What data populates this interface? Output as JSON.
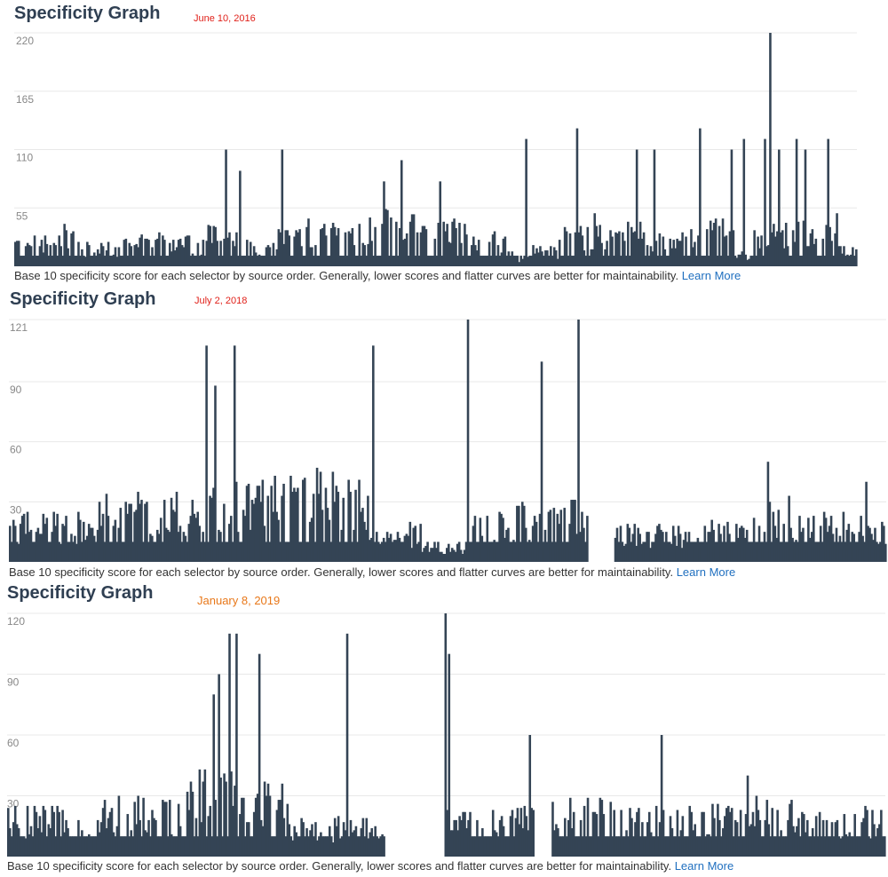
{
  "colors": {
    "bars": "#344455",
    "grid": "#e8e8e8",
    "tick": "#888888",
    "link": "#1f6fbf"
  },
  "caption_text": "Base 10 specificity score for each selector by source order. Generally, lower scores and flatter curves are better for maintainability.",
  "learn_more": "Learn More",
  "panels": [
    {
      "title": "Specificity Graph",
      "date": "June 10, 2016",
      "date_color": "#e0211a",
      "chart_data": {
        "type": "area",
        "ylim": [
          0,
          220
        ],
        "yticks": [
          "220",
          "165",
          "110",
          "55"
        ],
        "n": 480,
        "baseline": 10,
        "bands": [
          [
            0,
            18,
            30
          ],
          [
            18,
            40,
            40
          ],
          [
            40,
            60,
            25
          ],
          [
            60,
            85,
            35
          ],
          [
            85,
            110,
            30
          ],
          [
            110,
            130,
            40
          ],
          [
            130,
            150,
            25
          ],
          [
            150,
            170,
            45
          ],
          [
            170,
            190,
            50
          ],
          [
            190,
            215,
            55
          ],
          [
            215,
            235,
            50
          ],
          [
            235,
            260,
            45
          ],
          [
            260,
            285,
            35
          ],
          [
            285,
            295,
            10
          ],
          [
            295,
            310,
            20
          ],
          [
            310,
            335,
            40
          ],
          [
            335,
            360,
            45
          ],
          [
            360,
            380,
            35
          ],
          [
            380,
            410,
            45
          ],
          [
            410,
            420,
            15
          ],
          [
            420,
            445,
            45
          ],
          [
            445,
            470,
            45
          ],
          [
            470,
            480,
            20
          ]
        ],
        "peaks": [
          [
            120,
            110
          ],
          [
            128,
            90
          ],
          [
            152,
            110
          ],
          [
            210,
            80
          ],
          [
            220,
            100
          ],
          [
            242,
            80
          ],
          [
            291,
            120
          ],
          [
            320,
            130
          ],
          [
            330,
            50
          ],
          [
            354,
            110
          ],
          [
            364,
            110
          ],
          [
            390,
            130
          ],
          [
            408,
            110
          ],
          [
            415,
            120
          ],
          [
            427,
            120
          ],
          [
            430,
            220
          ],
          [
            435,
            110
          ],
          [
            445,
            120
          ],
          [
            450,
            110
          ],
          [
            463,
            120
          ],
          [
            468,
            50
          ]
        ]
      }
    },
    {
      "title": "Specificity Graph",
      "date": "July 2, 2018",
      "date_color": "#e0211a",
      "chart_data": {
        "type": "area",
        "ylim": [
          0,
          121
        ],
        "yticks": [
          "121",
          "90",
          "60",
          "30"
        ],
        "n": 500,
        "baseline": 10,
        "bands": [
          [
            0,
            50,
            25
          ],
          [
            50,
            110,
            35
          ],
          [
            110,
            140,
            40
          ],
          [
            140,
            160,
            45
          ],
          [
            160,
            185,
            50
          ],
          [
            185,
            205,
            45
          ],
          [
            205,
            220,
            15
          ],
          [
            220,
            235,
            20
          ],
          [
            235,
            260,
            10
          ],
          [
            260,
            280,
            25
          ],
          [
            280,
            300,
            30
          ],
          [
            300,
            330,
            35
          ],
          [
            330,
            345,
            0
          ],
          [
            345,
            370,
            20
          ],
          [
            370,
            400,
            20
          ],
          [
            400,
            420,
            25
          ],
          [
            420,
            445,
            35
          ],
          [
            445,
            470,
            25
          ],
          [
            470,
            500,
            25
          ]
        ],
        "peaks": [
          [
            112,
            108
          ],
          [
            117,
            88
          ],
          [
            128,
            108
          ],
          [
            207,
            108
          ],
          [
            261,
            121
          ],
          [
            303,
            100
          ],
          [
            324,
            121
          ],
          [
            432,
            50
          ],
          [
            488,
            40
          ]
        ]
      }
    },
    {
      "title": "Specificity Graph",
      "date": "January 8, 2019",
      "date_color": "#e8781a",
      "chart_data": {
        "type": "area",
        "ylim": [
          0,
          120
        ],
        "yticks": [
          "120",
          "90",
          "60",
          "30"
        ],
        "n": 500,
        "baseline": 10,
        "bands": [
          [
            0,
            50,
            25
          ],
          [
            50,
            100,
            30
          ],
          [
            100,
            130,
            45
          ],
          [
            130,
            160,
            40
          ],
          [
            160,
            215,
            20
          ],
          [
            215,
            250,
            0
          ],
          [
            250,
            300,
            25
          ],
          [
            300,
            310,
            0
          ],
          [
            310,
            350,
            30
          ],
          [
            350,
            400,
            30
          ],
          [
            400,
            450,
            30
          ],
          [
            450,
            500,
            25
          ]
        ],
        "peaks": [
          [
            117,
            80
          ],
          [
            120,
            90
          ],
          [
            126,
            110
          ],
          [
            130,
            110
          ],
          [
            143,
            100
          ],
          [
            193,
            110
          ],
          [
            249,
            120
          ],
          [
            251,
            100
          ],
          [
            297,
            60
          ],
          [
            372,
            60
          ],
          [
            421,
            40
          ]
        ]
      }
    }
  ]
}
